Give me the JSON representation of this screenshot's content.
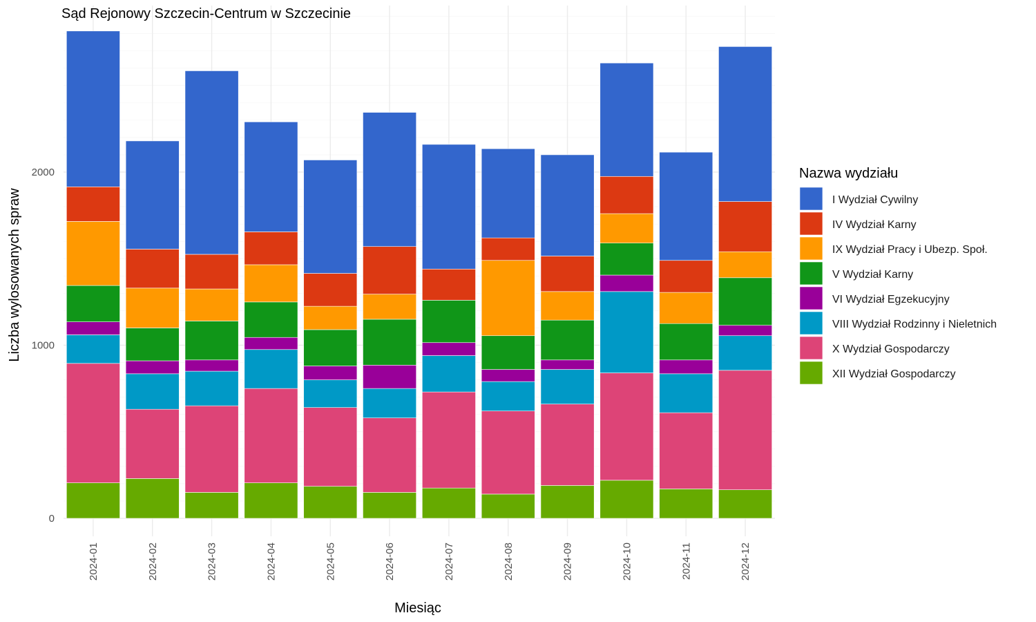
{
  "chart_data": {
    "type": "bar",
    "stacked": true,
    "title": "Sąd Rejonowy Szczecin-Centrum w Szczecinie",
    "xlabel": "Miesiąc",
    "ylabel": "Liczba wylosowanych spraw",
    "ylim": [
      0,
      2950
    ],
    "yticks": [
      0,
      1000,
      2000
    ],
    "grid": true,
    "legend_title": "Nazwa wydziału",
    "legend_position": "right",
    "categories": [
      "2024-01",
      "2024-02",
      "2024-03",
      "2024-04",
      "2024-05",
      "2024-06",
      "2024-07",
      "2024-08",
      "2024-09",
      "2024-10",
      "2024-11",
      "2024-12"
    ],
    "series": [
      {
        "name": "XII Wydział Gospodarczy",
        "color": "#66aa00",
        "values": [
          205,
          230,
          150,
          205,
          185,
          150,
          175,
          140,
          190,
          220,
          170,
          165
        ]
      },
      {
        "name": "X Wydział Gospodarczy",
        "color": "#dd4477",
        "values": [
          690,
          400,
          500,
          545,
          455,
          430,
          555,
          480,
          470,
          620,
          440,
          690
        ]
      },
      {
        "name": "VIII Wydział Rodzinny i Nieletnich",
        "color": "#0099c6",
        "values": [
          165,
          205,
          200,
          225,
          160,
          170,
          210,
          170,
          200,
          470,
          225,
          200
        ]
      },
      {
        "name": "VI Wydział Egzekucyjny",
        "color": "#990099",
        "values": [
          75,
          75,
          65,
          70,
          80,
          135,
          75,
          70,
          55,
          95,
          80,
          60
        ]
      },
      {
        "name": "V Wydział Karny",
        "color": "#109618",
        "values": [
          210,
          190,
          225,
          205,
          210,
          265,
          245,
          195,
          230,
          185,
          210,
          275
        ]
      },
      {
        "name": "IX Wydział Pracy i Ubezp. Społ.",
        "color": "#ff9900",
        "values": [
          370,
          230,
          185,
          215,
          135,
          145,
          0,
          435,
          165,
          170,
          180,
          150
        ]
      },
      {
        "name": "IV Wydział Karny",
        "color": "#dc3912",
        "values": [
          200,
          225,
          200,
          190,
          190,
          275,
          180,
          130,
          205,
          215,
          185,
          290
        ]
      },
      {
        "name": "I Wydział Cywilny",
        "color": "#3366cc",
        "values": [
          900,
          625,
          1060,
          635,
          655,
          775,
          720,
          515,
          585,
          655,
          625,
          895
        ]
      }
    ],
    "legend_order": [
      "I Wydział Cywilny",
      "IV Wydział Karny",
      "IX Wydział Pracy i Ubezp. Społ.",
      "V Wydział Karny",
      "VI Wydział Egzekucyjny",
      "VIII Wydział Rodzinny i Nieletnich",
      "X Wydział Gospodarczy",
      "XII Wydział Gospodarczy"
    ]
  }
}
